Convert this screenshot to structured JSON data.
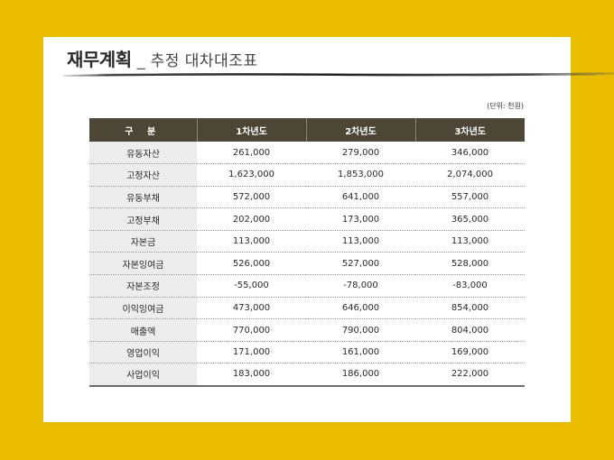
{
  "title": {
    "main": "재무계획",
    "separator": "_",
    "sub": "추정 대차대조표"
  },
  "unit_note": "(단위: 천원)",
  "table": {
    "headers": [
      "구 분",
      "1차년도",
      "2차년도",
      "3차년도"
    ],
    "rows": [
      {
        "label": "유동자산",
        "y1": "261,000",
        "y2": "279,000",
        "y3": "346,000"
      },
      {
        "label": "고정자산",
        "y1": "1,623,000",
        "y2": "1,853,000",
        "y3": "2,074,000"
      },
      {
        "label": "유동부채",
        "y1": "572,000",
        "y2": "641,000",
        "y3": "557,000"
      },
      {
        "label": "고정부채",
        "y1": "202,000",
        "y2": "173,000",
        "y3": "365,000"
      },
      {
        "label": "자본금",
        "y1": "113,000",
        "y2": "113,000",
        "y3": "113,000"
      },
      {
        "label": "자본잉여금",
        "y1": "526,000",
        "y2": "527,000",
        "y3": "528,000"
      },
      {
        "label": "자본조정",
        "y1": "-55,000",
        "y2": "-78,000",
        "y3": "-83,000"
      },
      {
        "label": "이익잉여금",
        "y1": "473,000",
        "y2": "646,000",
        "y3": "854,000"
      },
      {
        "label": "매출액",
        "y1": "770,000",
        "y2": "790,000",
        "y3": "804,000"
      },
      {
        "label": "영업이익",
        "y1": "171,000",
        "y2": "161,000",
        "y3": "169,000"
      },
      {
        "label": "사업이익",
        "y1": "183,000",
        "y2": "186,000",
        "y3": "222,000"
      }
    ]
  },
  "colors": {
    "background": "#e8bd00",
    "header_bg": "#4b4635",
    "label_bg": "#ececec"
  }
}
